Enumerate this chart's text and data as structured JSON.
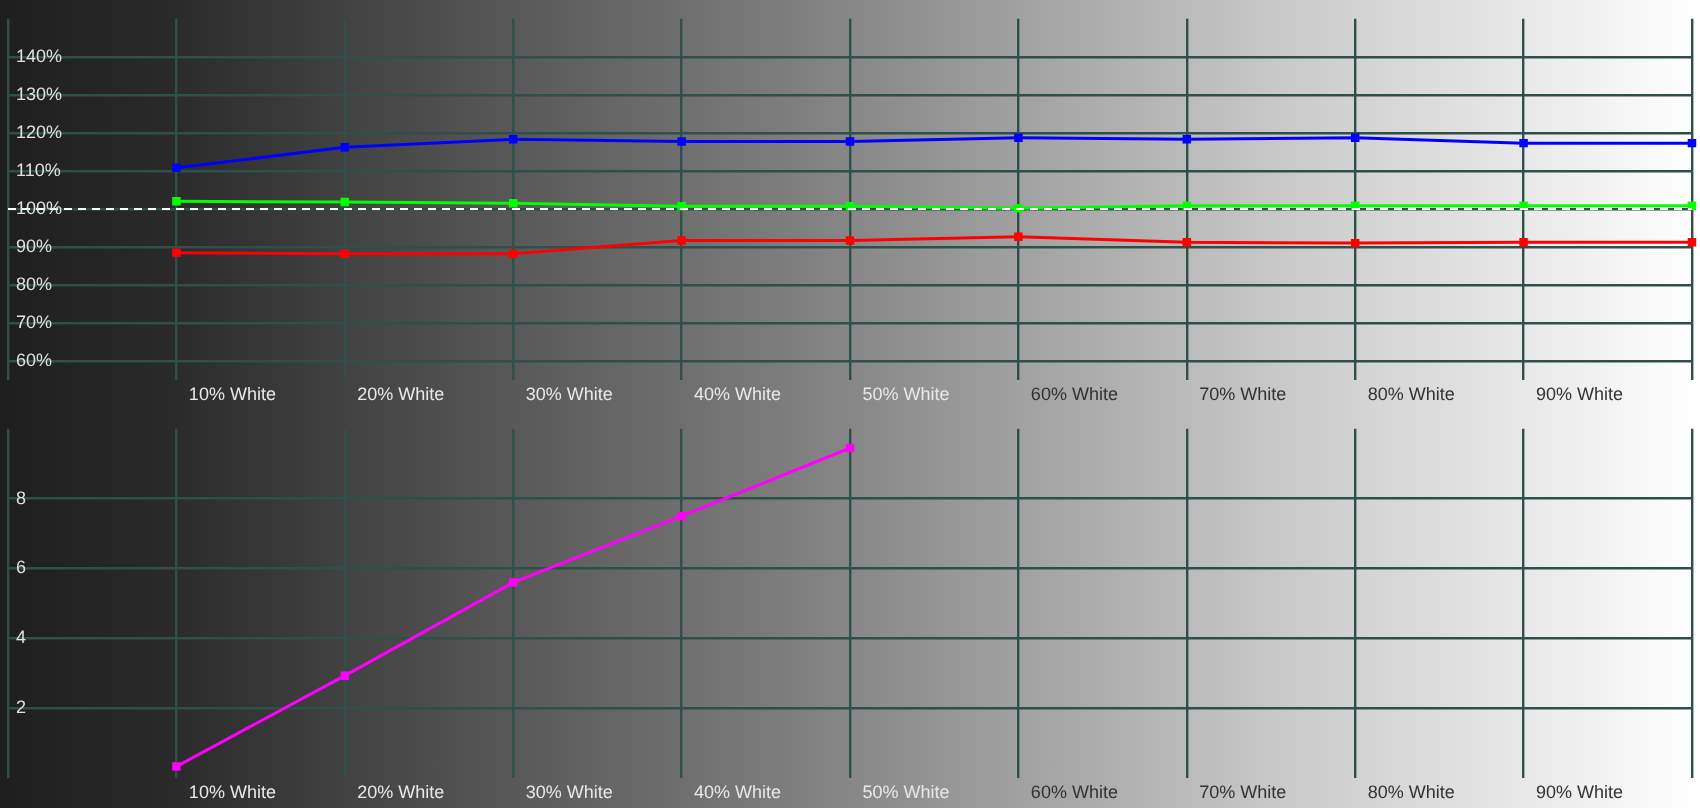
{
  "chart_data": [
    {
      "type": "line",
      "categories": [
        null,
        "10% White",
        "20% White",
        "30% White",
        "40% White",
        "50% White",
        "60% White",
        "70% White",
        "80% White",
        "90% White",
        null
      ],
      "series": [
        {
          "color": "#0000ff",
          "values": [
            null,
            110.8,
            116.2,
            118.3,
            117.7,
            117.7,
            118.7,
            118.3,
            118.7,
            117.3,
            117.3
          ]
        },
        {
          "color": "#00ff00",
          "values": [
            null,
            102,
            101.8,
            101.5,
            100.7,
            100.7,
            100.2,
            100.8,
            100.8,
            100.8,
            100.8
          ]
        },
        {
          "color": "#ff0000",
          "values": [
            null,
            88.5,
            88.2,
            88.2,
            91.7,
            91.7,
            92.7,
            91.2,
            91,
            91.2,
            91.2
          ]
        }
      ],
      "ylim": [
        55,
        150
      ],
      "yticks": [
        {
          "value": 60,
          "label": "60%"
        },
        {
          "value": 70,
          "label": "70%"
        },
        {
          "value": 80,
          "label": "80%"
        },
        {
          "value": 90,
          "label": "90%"
        },
        {
          "value": 100,
          "label": "100%"
        },
        {
          "value": 110,
          "label": "110%"
        },
        {
          "value": 120,
          "label": "120%"
        },
        {
          "value": 130,
          "label": "130%"
        },
        {
          "value": 140,
          "label": "140%"
        }
      ],
      "ref_lines": [
        {
          "axis": "y",
          "value": 100,
          "color": "#ffffff",
          "line_style": "dashed"
        }
      ],
      "grid": true,
      "marker": "square"
    },
    {
      "type": "line",
      "categories": [
        null,
        "10% White",
        "20% White",
        "30% White",
        "40% White",
        "50% White",
        "60% White",
        "70% White",
        "80% White",
        "90% White",
        null
      ],
      "series": [
        {
          "color": "#ff00ff",
          "values": [
            null,
            0.33,
            2.93,
            5.6,
            7.5,
            9.45,
            null,
            null,
            null,
            null,
            null
          ]
        }
      ],
      "ylim": [
        0,
        10
      ],
      "yticks": [
        2,
        4,
        6,
        8
      ],
      "grid": true,
      "marker": "square"
    }
  ]
}
